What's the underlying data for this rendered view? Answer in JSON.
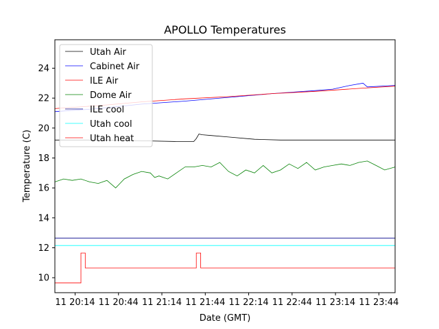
{
  "chart_data": {
    "type": "line",
    "title": "APOLLO Temperatures",
    "xlabel": "Date (GMT)",
    "ylabel": "Temperature (C)",
    "xlim": [
      20.0,
      23.92
    ],
    "ylim": [
      9.0,
      25.9
    ],
    "yticks": [
      10,
      12,
      14,
      16,
      18,
      20,
      22,
      24
    ],
    "xticks": [
      {
        "value": 20.233,
        "label": "11 20:14"
      },
      {
        "value": 20.733,
        "label": "11 20:44"
      },
      {
        "value": 21.233,
        "label": "11 21:14"
      },
      {
        "value": 21.733,
        "label": "11 21:44"
      },
      {
        "value": 22.233,
        "label": "11 22:14"
      },
      {
        "value": 22.733,
        "label": "11 22:44"
      },
      {
        "value": 23.233,
        "label": "11 23:14"
      },
      {
        "value": 23.733,
        "label": "11 23:44"
      }
    ],
    "grid": false,
    "legend_position": "upper-left",
    "series": [
      {
        "name": "Utah Air",
        "color": "#000000",
        "x": [
          20.0,
          20.3,
          20.6,
          21.0,
          21.4,
          21.6,
          21.63,
          21.66,
          21.7,
          21.8,
          22.0,
          22.3,
          22.6,
          23.0,
          23.4,
          23.92
        ],
        "y": [
          19.2,
          19.2,
          19.2,
          19.15,
          19.1,
          19.1,
          19.3,
          19.6,
          19.55,
          19.5,
          19.4,
          19.25,
          19.2,
          19.2,
          19.2,
          19.2
        ]
      },
      {
        "name": "Cabinet Air",
        "color": "#0000ff",
        "x": [
          20.0,
          20.5,
          21.0,
          21.5,
          22.0,
          22.5,
          23.0,
          23.2,
          23.4,
          23.55,
          23.6,
          23.92
        ],
        "y": [
          21.1,
          21.3,
          21.6,
          21.8,
          22.05,
          22.3,
          22.5,
          22.6,
          22.85,
          23.0,
          22.75,
          22.85
        ]
      },
      {
        "name": "ILE Air",
        "color": "#ff0000",
        "x": [
          20.0,
          20.5,
          21.0,
          21.5,
          22.0,
          22.5,
          23.0,
          23.5,
          23.92
        ],
        "y": [
          21.3,
          21.5,
          21.75,
          21.95,
          22.1,
          22.3,
          22.45,
          22.65,
          22.8
        ]
      },
      {
        "name": "Dome Air",
        "color": "#008000",
        "x": [
          20.0,
          20.1,
          20.2,
          20.3,
          20.4,
          20.5,
          20.6,
          20.7,
          20.75,
          20.8,
          20.9,
          21.0,
          21.1,
          21.15,
          21.2,
          21.3,
          21.4,
          21.5,
          21.6,
          21.7,
          21.8,
          21.9,
          22.0,
          22.1,
          22.2,
          22.3,
          22.4,
          22.5,
          22.6,
          22.7,
          22.8,
          22.9,
          23.0,
          23.1,
          23.2,
          23.3,
          23.4,
          23.5,
          23.6,
          23.7,
          23.8,
          23.92
        ],
        "y": [
          16.4,
          16.6,
          16.5,
          16.6,
          16.4,
          16.3,
          16.5,
          16.0,
          16.3,
          16.6,
          16.9,
          17.1,
          17.0,
          16.7,
          16.8,
          16.6,
          17.0,
          17.4,
          17.4,
          17.5,
          17.4,
          17.7,
          17.1,
          16.8,
          17.2,
          17.0,
          17.5,
          17.0,
          17.2,
          17.6,
          17.3,
          17.7,
          17.2,
          17.4,
          17.5,
          17.6,
          17.5,
          17.7,
          17.8,
          17.5,
          17.2,
          17.4
        ]
      },
      {
        "name": "ILE cool",
        "color": "#00008b",
        "x": [
          20.0,
          23.92
        ],
        "y": [
          12.65,
          12.65
        ]
      },
      {
        "name": "Utah cool",
        "color": "#00ffff",
        "x": [
          20.0,
          23.92
        ],
        "y": [
          12.15,
          12.15
        ]
      },
      {
        "name": "Utah heat",
        "color": "#ff0000",
        "x": [
          20.0,
          20.3,
          20.3,
          20.35,
          20.35,
          21.63,
          21.63,
          21.68,
          21.68,
          23.92
        ],
        "y": [
          9.65,
          9.65,
          11.65,
          11.65,
          10.65,
          10.65,
          11.65,
          11.65,
          10.65,
          10.65
        ]
      }
    ]
  }
}
